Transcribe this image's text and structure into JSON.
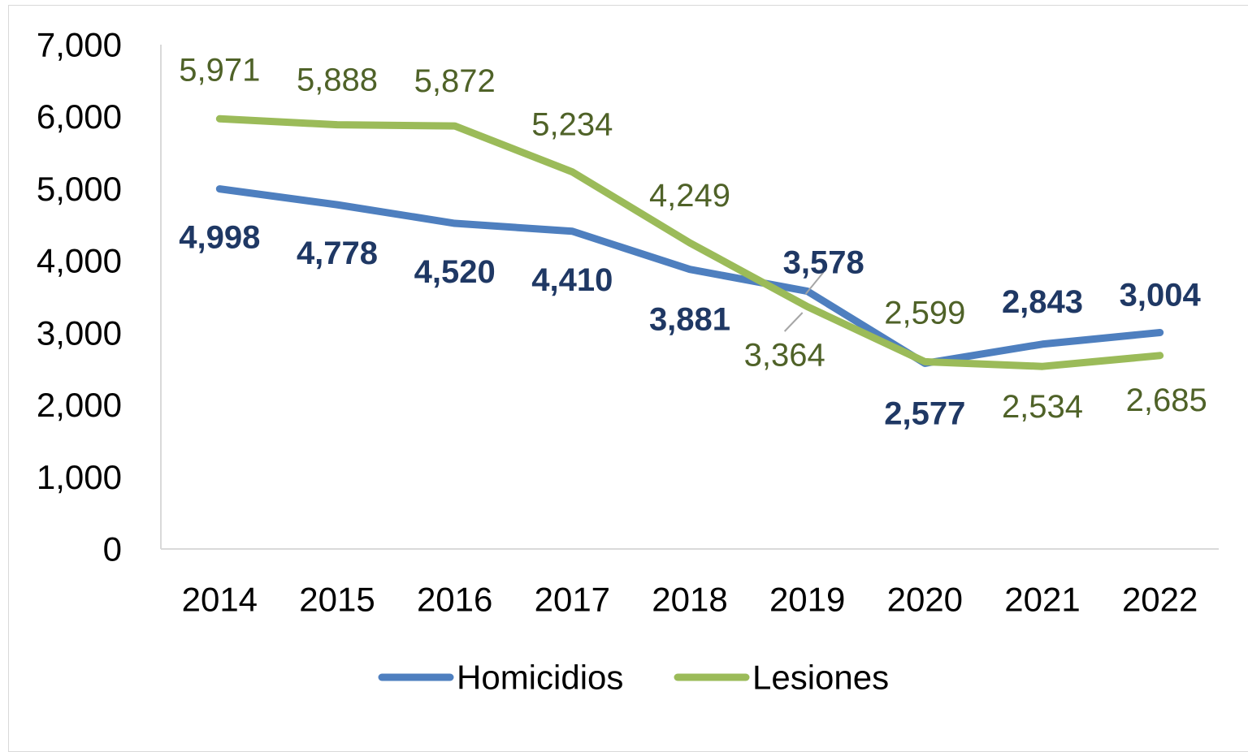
{
  "chart_data": {
    "type": "line",
    "title": "",
    "xlabel": "",
    "ylabel": "",
    "ylim": [
      0,
      7000
    ],
    "yticks": [
      "0",
      "1,000",
      "2,000",
      "3,000",
      "4,000",
      "5,000",
      "6,000",
      "7,000"
    ],
    "categories": [
      "2014",
      "2015",
      "2016",
      "2017",
      "2018",
      "2019",
      "2020",
      "2021",
      "2022"
    ],
    "grid": false,
    "legend_position": "bottom",
    "series": [
      {
        "name": "Homicidios",
        "color": "#4E7FBF",
        "label_color": "#1F3864",
        "values": [
          4998,
          4778,
          4520,
          4410,
          3881,
          3578,
          2577,
          2843,
          3004
        ],
        "labels": [
          "4,998",
          "4,778",
          "4,520",
          "4,410",
          "3,881",
          "3,578",
          "2,577",
          "2,843",
          "3,004"
        ]
      },
      {
        "name": "Lesiones",
        "color": "#9BBB59",
        "label_color": "#4F6228",
        "values": [
          5971,
          5888,
          5872,
          5234,
          4249,
          3364,
          2599,
          2534,
          2685
        ],
        "labels": [
          "5,971",
          "5,888",
          "5,872",
          "5,234",
          "4,249",
          "3,364",
          "2,599",
          "2,534",
          "2,685"
        ]
      }
    ]
  }
}
